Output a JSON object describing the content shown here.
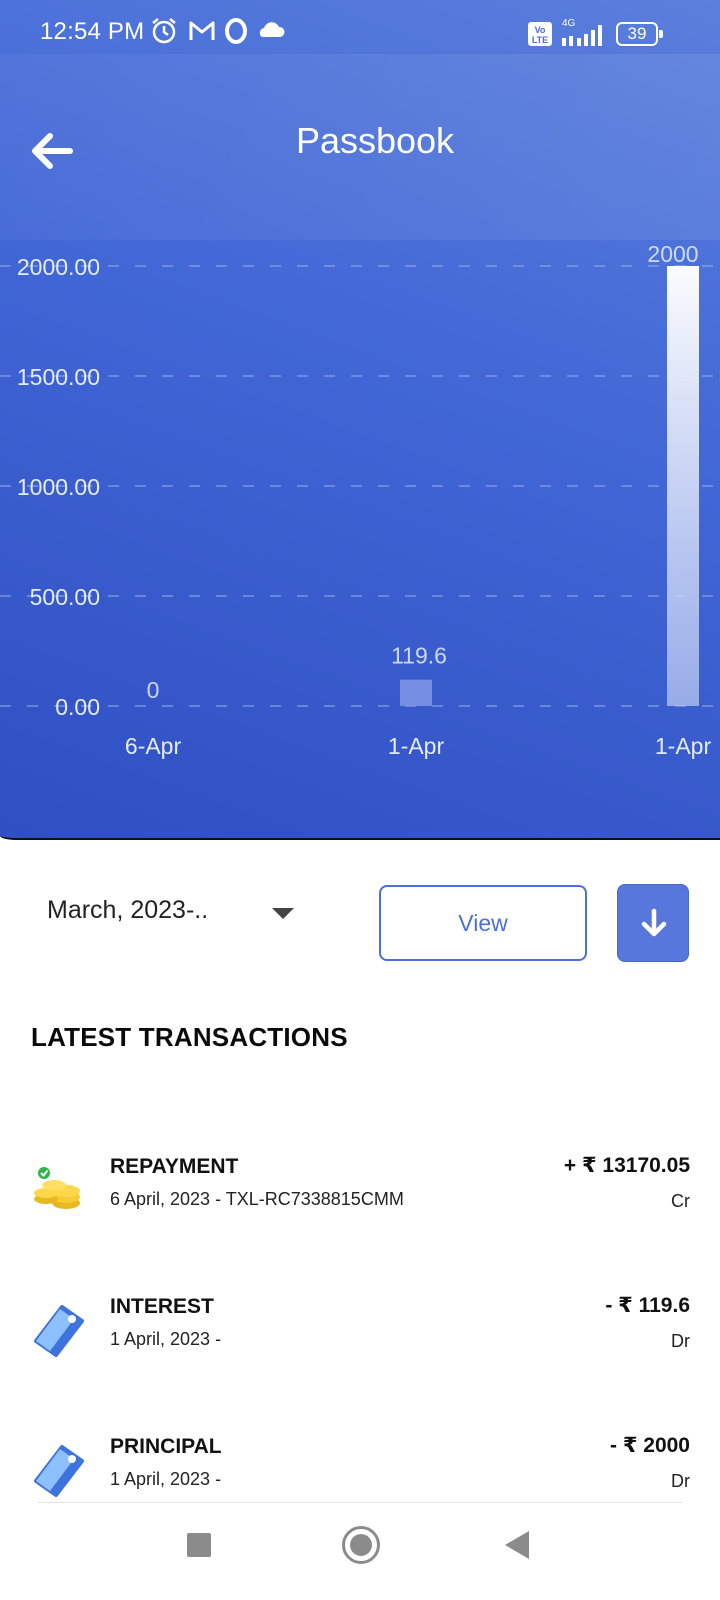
{
  "status_bar": {
    "time": "12:54 PM",
    "icons": [
      "alarm-icon",
      "gmail-icon",
      "opera-icon",
      "cloud-icon",
      "volte-icon",
      "signal-4g-icon",
      "battery-icon"
    ],
    "network": "4G",
    "volte": "Vo LTE",
    "battery": "39"
  },
  "header": {
    "title": "Passbook",
    "back_icon": "arrow-left-icon"
  },
  "chart_data": {
    "type": "bar",
    "categories": [
      "6-Apr",
      "1-Apr",
      "1-Apr"
    ],
    "values": [
      0,
      119.6,
      2000
    ],
    "value_labels": [
      "0",
      "119.6",
      "2000"
    ],
    "y_ticks": [
      "2000.00",
      "1500.00",
      "1000.00",
      "500.00",
      "0.00"
    ],
    "ylim": [
      0,
      2000
    ],
    "grid": true,
    "colors": {
      "bar_top": "#ffffff",
      "bar_bottom": "#9fb2ea",
      "text": "#e6ecff",
      "grid": "#9db0ea"
    }
  },
  "controls": {
    "period_value": "March, 2023-..",
    "period_caret_icon": "caret-down-icon",
    "view_label": "View",
    "download_icon": "arrow-down-icon"
  },
  "transactions": {
    "heading": "LATEST TRANSACTIONS",
    "items": [
      {
        "title": "REPAYMENT",
        "subtitle": "6 April, 2023 - TXL-RC7338815CMM",
        "amount": "+ ₹ 13170.05",
        "type": "Cr",
        "icon": "coins-icon"
      },
      {
        "title": "INTEREST",
        "subtitle": "1 April, 2023 -",
        "amount": "- ₹ 119.6",
        "type": "Dr",
        "icon": "tag-icon"
      },
      {
        "title": "PRINCIPAL",
        "subtitle": "1 April, 2023 -",
        "amount": "- ₹ 2000",
        "type": "Dr",
        "icon": "tag-icon"
      }
    ]
  },
  "nav_bar": {
    "icons": [
      "recents-icon",
      "home-icon",
      "back-icon"
    ]
  }
}
